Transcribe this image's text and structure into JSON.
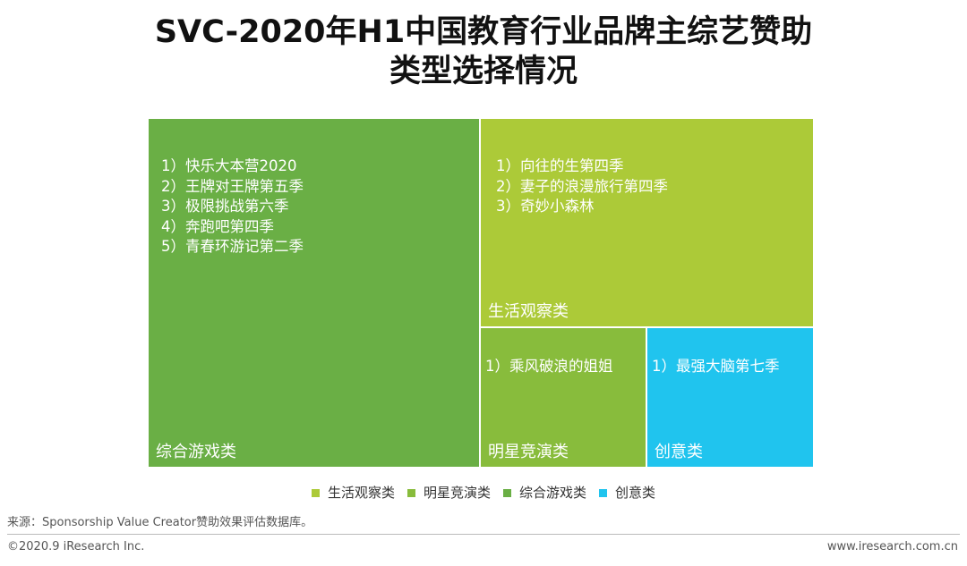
{
  "title": {
    "line1": "SVC-2020年H1中国教育行业品牌主综艺赞助",
    "line2": "类型选择情况"
  },
  "chart_data": {
    "type": "treemap",
    "title": "SVC-2020年H1中国教育行业品牌主综艺赞助类型选择情况",
    "categories": [
      {
        "name": "综合游戏类",
        "color": "#6AAF45",
        "items": [
          "1）快乐大本营2020",
          "2）王牌对王牌第五季",
          "3）极限挑战第六季",
          "4）奔跑吧第四季",
          "5）青春环游记第二季"
        ],
        "count": 5
      },
      {
        "name": "生活观察类",
        "color": "#ACCA38",
        "items": [
          "1）向往的生第四季",
          "2）妻子的浪漫旅行第四季",
          "3）奇妙小森林"
        ],
        "count": 3
      },
      {
        "name": "明星竞演类",
        "color": "#88BC3C",
        "items": [
          "1）乘风破浪的姐姐"
        ],
        "count": 1
      },
      {
        "name": "创意类",
        "color": "#20C4EE",
        "items": [
          "1）最强大脑第七季"
        ],
        "count": 1
      }
    ],
    "legend": {
      "placement": "bottom",
      "entries": [
        "生活观察类",
        "明星竞演类",
        "综合游戏类",
        "创意类"
      ]
    }
  },
  "legend_colors": [
    "#ACCA38",
    "#88BC3C",
    "#6AAF45",
    "#20C4EE"
  ],
  "footer": {
    "source": "来源：Sponsorship Value Creator赞助效果评估数据库。",
    "copyright": "©2020.9 iResearch Inc.",
    "website": "www.iresearch.com.cn"
  }
}
